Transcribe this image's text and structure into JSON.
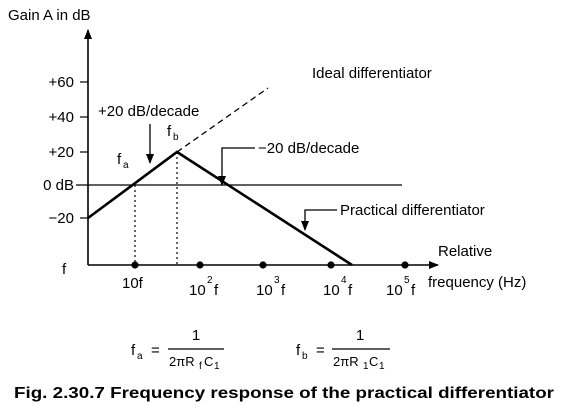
{
  "chart_data": {
    "type": "line",
    "title": "",
    "ylabel": "Gain A in dB",
    "xlabel_line1": "Relative",
    "xlabel_line2": "frequency (Hz)",
    "y_ticks": [
      "+60",
      "+40",
      "+20",
      "0 dB",
      "−20"
    ],
    "x_origin_label": "f",
    "x_ticks": [
      {
        "base": "10f",
        "exp": ""
      },
      {
        "base": "10",
        "exp": "2",
        "suffix": "f"
      },
      {
        "base": "10",
        "exp": "3",
        "suffix": "f"
      },
      {
        "base": "10",
        "exp": "4",
        "suffix": "f"
      },
      {
        "base": "10",
        "exp": "5",
        "suffix": "f"
      }
    ],
    "series": [
      {
        "name": "Practical differentiator"
      },
      {
        "name": "Ideal differentiator"
      }
    ],
    "annotations": {
      "slope_up": "+20 dB/decade",
      "slope_down": "−20 dB/decade",
      "fa": "f",
      "fa_sub": "a",
      "fb": "f",
      "fb_sub": "b"
    }
  },
  "formulas": {
    "fa": {
      "lhs": "f",
      "lhs_sub": "a",
      "eq": "=",
      "num": "1",
      "den": "2πR",
      "den_sub1": "f",
      "den_mid": "C",
      "den_sub2": "1"
    },
    "fb": {
      "lhs": "f",
      "lhs_sub": "b",
      "eq": "=",
      "num": "1",
      "den": "2πR",
      "den_sub1": "1",
      "den_mid": "C",
      "den_sub2": "1"
    }
  },
  "caption": "Fig. 2.30.7 Frequency response of the practical differentiator"
}
